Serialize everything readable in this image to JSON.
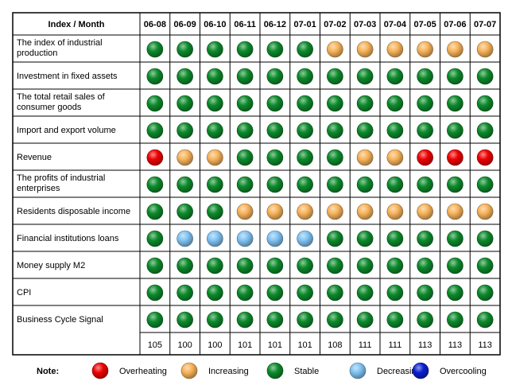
{
  "colors": {
    "Overheating": "#ee0000",
    "Increasing": "#f7b35a",
    "Stable": "#0c8a2b",
    "Decreasing": "#80c2f2",
    "Overcooling": "#0a1fd0"
  },
  "chart_data": {
    "type": "table",
    "header_label": "Index / Month",
    "months": [
      "06-08",
      "06-09",
      "06-10",
      "06-11",
      "06-12",
      "07-01",
      "07-02",
      "07-03",
      "07-04",
      "07-05",
      "07-06",
      "07-07"
    ],
    "rows": [
      {
        "label_lines": [
          "The index of industrial",
          "production"
        ],
        "signals": [
          "Stable",
          "Stable",
          "Stable",
          "Stable",
          "Stable",
          "Stable",
          "Increasing",
          "Increasing",
          "Increasing",
          "Increasing",
          "Increasing",
          "Increasing"
        ]
      },
      {
        "label_lines": [
          "Investment in fixed assets"
        ],
        "signals": [
          "Stable",
          "Stable",
          "Stable",
          "Stable",
          "Stable",
          "Stable",
          "Stable",
          "Stable",
          "Stable",
          "Stable",
          "Stable",
          "Stable"
        ]
      },
      {
        "label_lines": [
          "The total retail sales of",
          "consumer goods"
        ],
        "signals": [
          "Stable",
          "Stable",
          "Stable",
          "Stable",
          "Stable",
          "Stable",
          "Stable",
          "Stable",
          "Stable",
          "Stable",
          "Stable",
          "Stable"
        ]
      },
      {
        "label_lines": [
          "Import and export volume"
        ],
        "signals": [
          "Stable",
          "Stable",
          "Stable",
          "Stable",
          "Stable",
          "Stable",
          "Stable",
          "Stable",
          "Stable",
          "Stable",
          "Stable",
          "Stable"
        ]
      },
      {
        "label_lines": [
          "Revenue"
        ],
        "signals": [
          "Overheating",
          "Increasing",
          "Increasing",
          "Stable",
          "Stable",
          "Stable",
          "Stable",
          "Increasing",
          "Increasing",
          "Overheating",
          "Overheating",
          "Overheating"
        ]
      },
      {
        "label_lines": [
          "The profits of industrial",
          "enterprises"
        ],
        "signals": [
          "Stable",
          "Stable",
          "Stable",
          "Stable",
          "Stable",
          "Stable",
          "Stable",
          "Stable",
          "Stable",
          "Stable",
          "Stable",
          "Stable"
        ]
      },
      {
        "label_lines": [
          "Residents disposable income"
        ],
        "signals": [
          "Stable",
          "Stable",
          "Stable",
          "Increasing",
          "Increasing",
          "Increasing",
          "Increasing",
          "Increasing",
          "Increasing",
          "Increasing",
          "Increasing",
          "Increasing"
        ]
      },
      {
        "label_lines": [
          "Financial institutions loans"
        ],
        "signals": [
          "Stable",
          "Decreasing",
          "Decreasing",
          "Decreasing",
          "Decreasing",
          "Decreasing",
          "Stable",
          "Stable",
          "Stable",
          "Stable",
          "Stable",
          "Stable"
        ]
      },
      {
        "label_lines": [
          "Money supply M2"
        ],
        "signals": [
          "Stable",
          "Stable",
          "Stable",
          "Stable",
          "Stable",
          "Stable",
          "Stable",
          "Stable",
          "Stable",
          "Stable",
          "Stable",
          "Stable"
        ]
      },
      {
        "label_lines": [
          "CPI"
        ],
        "signals": [
          "Stable",
          "Stable",
          "Stable",
          "Stable",
          "Stable",
          "Stable",
          "Stable",
          "Stable",
          "Stable",
          "Stable",
          "Stable",
          "Stable"
        ]
      },
      {
        "label_lines": [
          "Business Cycle Signal"
        ],
        "signals": [
          "Stable",
          "Stable",
          "Stable",
          "Stable",
          "Stable",
          "Stable",
          "Stable",
          "Stable",
          "Stable",
          "Stable",
          "Stable",
          "Stable"
        ],
        "values": [
          "105",
          "100",
          "100",
          "101",
          "101",
          "101",
          "108",
          "111",
          "111",
          "113",
          "113",
          "113"
        ]
      }
    ],
    "legend_title": "Note:",
    "legend": [
      "Overheating",
      "Increasing",
      "Stable",
      "Decreasing",
      "Overcooling"
    ]
  }
}
